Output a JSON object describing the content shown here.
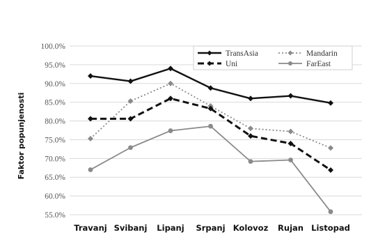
{
  "chart_data": {
    "type": "line",
    "title": "",
    "xlabel": "",
    "ylabel": "Faktor popunjenosti",
    "categories": [
      "Travanj",
      "Svibanj",
      "Lipanj",
      "Srpanj",
      "Kolovoz",
      "Rujan",
      "Listopad"
    ],
    "ylim": [
      55.0,
      100.0
    ],
    "yticks": [
      "55.0%",
      "60.0%",
      "65.0%",
      "70.0%",
      "75.0%",
      "80.0%",
      "85.0%",
      "90.0%",
      "95.0%",
      "100.0%"
    ],
    "ytick_values": [
      55,
      60,
      65,
      70,
      75,
      80,
      85,
      90,
      95,
      100
    ],
    "grid": true,
    "legend_position": "top-right",
    "series": [
      {
        "name": "TransAsia",
        "values": [
          92.0,
          90.6,
          94.0,
          88.8,
          86.0,
          86.7,
          84.8
        ],
        "color": "#111111",
        "style": "solid",
        "marker": "diamond"
      },
      {
        "name": "Mandarin",
        "values": [
          75.3,
          85.3,
          90.0,
          84.0,
          78.0,
          77.2,
          72.8
        ],
        "color": "#8a8a8a",
        "style": "dotted",
        "marker": "diamond"
      },
      {
        "name": "Uni",
        "values": [
          80.6,
          80.6,
          86.0,
          83.3,
          76.0,
          74.0,
          66.9
        ],
        "color": "#111111",
        "style": "dashed",
        "marker": "diamond"
      },
      {
        "name": "FarEast",
        "values": [
          67.0,
          72.9,
          77.4,
          78.6,
          69.2,
          69.6,
          55.8
        ],
        "color": "#8a8a8a",
        "style": "solid",
        "marker": "circle"
      }
    ]
  }
}
